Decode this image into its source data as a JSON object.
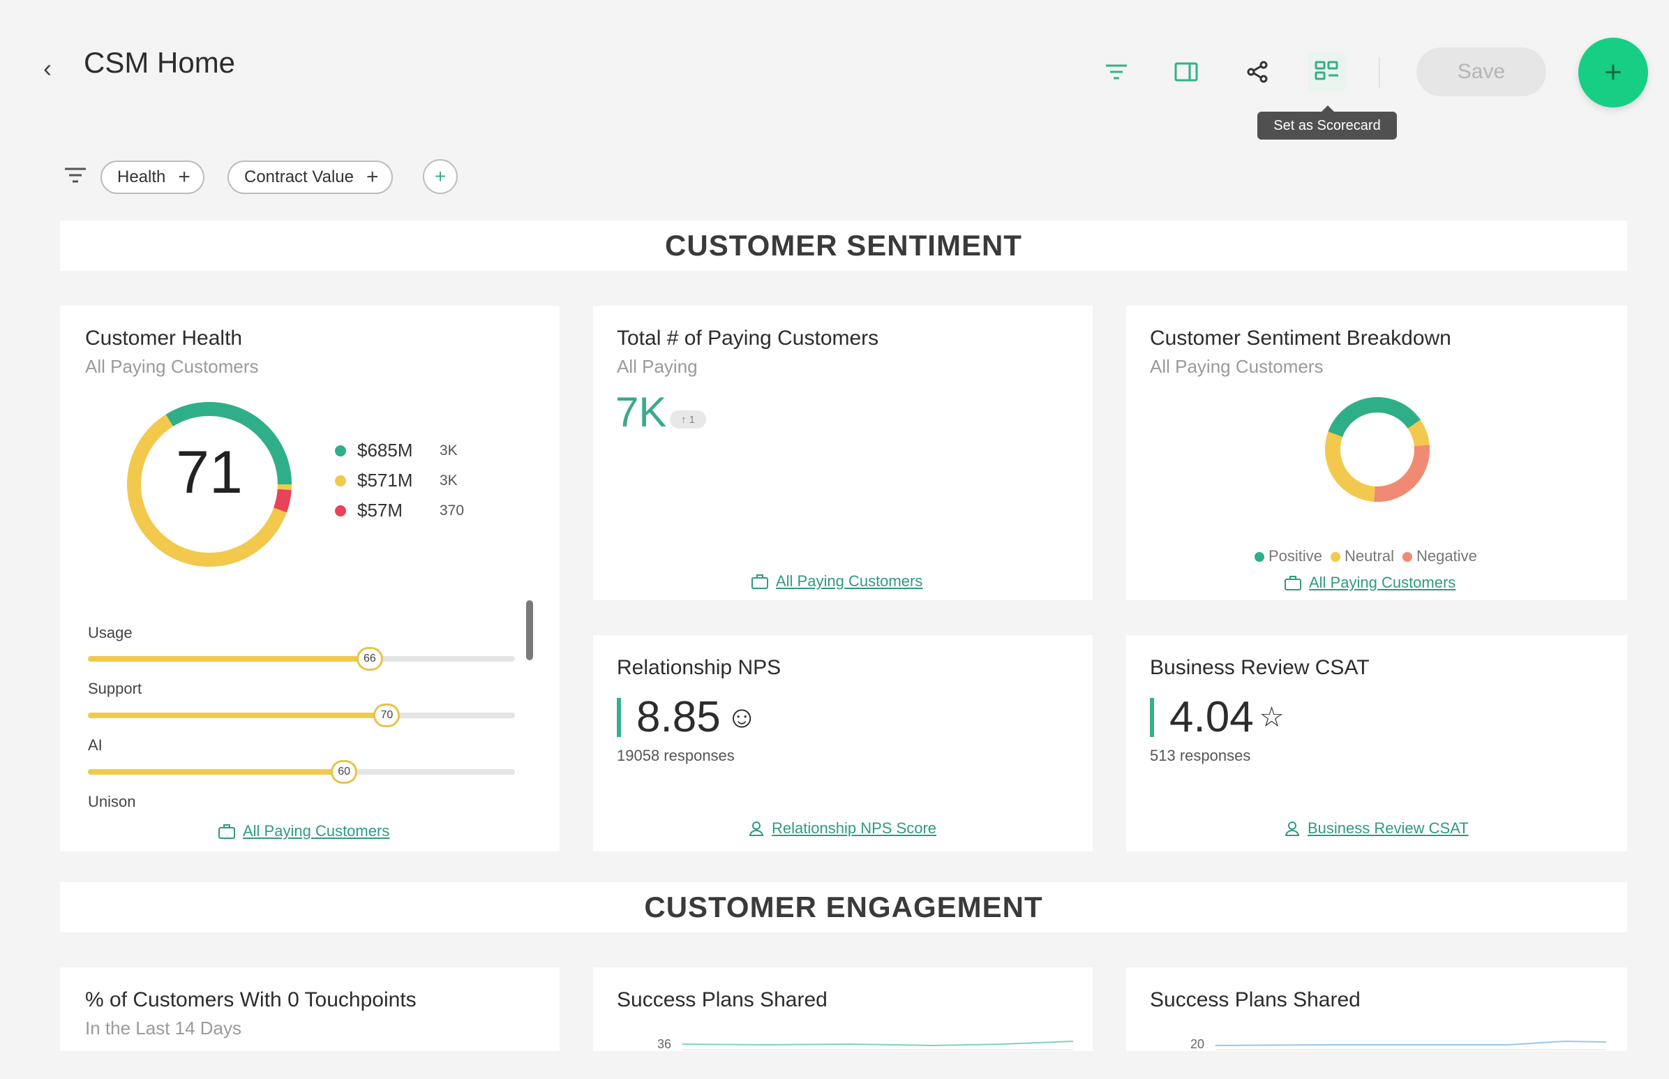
{
  "header": {
    "back_icon": "chevron-left-icon",
    "title": "CSM Home",
    "toolbar": [
      {
        "icon": "filter-icon"
      },
      {
        "icon": "panel-icon"
      },
      {
        "icon": "share-icon"
      },
      {
        "icon": "scorecard-icon"
      }
    ],
    "save_label": "Save",
    "add_label": "+",
    "tooltip": "Set as Scorecard"
  },
  "filters": {
    "icon": "filter-lines-icon",
    "chips": [
      {
        "label": "Health",
        "plus": "+"
      },
      {
        "label": "Contract Value",
        "plus": "+"
      }
    ],
    "add_label": "+"
  },
  "sections": {
    "sentiment": "CUSTOMER SENTIMENT",
    "engagement": "CUSTOMER ENGAGEMENT"
  },
  "colors": {
    "accent": "#34b08a",
    "green": "#2fae8a",
    "yellow": "#f2c94c",
    "red": "#e8435a",
    "salmon": "#f08a72"
  },
  "customer_health": {
    "title": "Customer Health",
    "subtitle": "All Paying Customers",
    "score": "71",
    "legend": [
      {
        "value": "$685M",
        "count": "3K",
        "color": "#2fae8a"
      },
      {
        "value": "$571M",
        "count": "3K",
        "color": "#f2c94c"
      },
      {
        "value": "$57M",
        "count": "370",
        "color": "#e8435a"
      }
    ],
    "bars": [
      {
        "label": "Usage",
        "value": 66,
        "knob": "66"
      },
      {
        "label": "Support",
        "value": 70,
        "knob": "70"
      },
      {
        "label": "AI",
        "value": 60,
        "knob": "60"
      },
      {
        "label": "Unison"
      }
    ],
    "link": "All Paying Customers"
  },
  "paying_customers": {
    "title": "Total # of Paying Customers",
    "subtitle": "All Paying",
    "value": "7K",
    "badge": "↑ 1",
    "link": "All Paying Customers"
  },
  "sentiment_breakdown": {
    "title": "Customer Sentiment Breakdown",
    "subtitle": "All Paying Customers",
    "legend": [
      {
        "label": "Positive",
        "color": "#2fae8a"
      },
      {
        "label": "Neutral",
        "color": "#f2c94c"
      },
      {
        "label": "Negative",
        "color": "#f08a72"
      }
    ],
    "link": "All Paying Customers"
  },
  "nps": {
    "title": "Relationship NPS",
    "value": "8.85",
    "icon": "smiley-icon",
    "responses": "19058 responses",
    "link": "Relationship NPS Score"
  },
  "csat": {
    "title": "Business Review CSAT",
    "value": "4.04",
    "icon": "star-icon",
    "responses": "513 responses",
    "link": "Business Review CSAT"
  },
  "engagement": {
    "touchpoints": {
      "title": "% of Customers With 0 Touchpoints",
      "subtitle": "In the Last 14 Days"
    },
    "plans_a": {
      "title": "Success Plans Shared",
      "axis_label": "36"
    },
    "plans_b": {
      "title": "Success Plans Shared",
      "axis_label": "20"
    }
  }
}
